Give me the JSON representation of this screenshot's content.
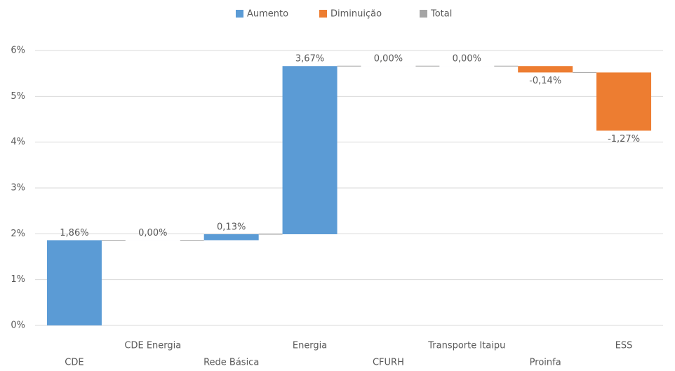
{
  "chart_data": {
    "type": "waterfall",
    "legend": [
      {
        "name": "Aumento",
        "color": "#5b9bd5"
      },
      {
        "name": "Diminuição",
        "color": "#ed7d31"
      },
      {
        "name": "Total",
        "color": "#a5a5a5"
      }
    ],
    "categories": [
      "CDE",
      "CDE Energia",
      "Rede Básica",
      "Energia",
      "CFURH",
      "Transporte Itaipu",
      "Proinfa",
      "ESS"
    ],
    "values": [
      1.86,
      0,
      0.13,
      3.67,
      0,
      0,
      -0.14,
      -1.27
    ],
    "value_labels": [
      "1,86%",
      "0,00%",
      "0,13%",
      "3,67%",
      "0,00%",
      "0,00%",
      "-0,14%",
      "-1,27%"
    ],
    "ylim": [
      0,
      6
    ],
    "yticks": [
      {
        "value": 0,
        "label": "0%"
      },
      {
        "value": 1,
        "label": "1%"
      },
      {
        "value": 2,
        "label": "2%"
      },
      {
        "value": 3,
        "label": "3%"
      },
      {
        "value": 4,
        "label": "4%"
      },
      {
        "value": 5,
        "label": "5%"
      },
      {
        "value": 6,
        "label": "6%"
      }
    ],
    "grid": true
  }
}
